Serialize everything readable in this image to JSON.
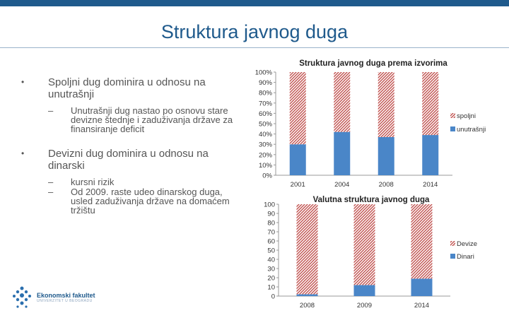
{
  "slide": {
    "title": "Struktura javnog duga",
    "accent_color": "#1f5a8c"
  },
  "bullets": [
    {
      "text": "Spoljni dug dominira u odnosu na unutrašnji",
      "subs": [
        "Unutrašnji dug nastao po osnovu stare devizne štednje i zaduživanja države za finansiranje deficit"
      ]
    },
    {
      "text": "Devizni dug dominira u odnosu na dinarski",
      "subs": [
        "kursni rizik",
        "Od 2009. raste udeo dinarskog duga, usled zaduživanja države na domaćem tržištu"
      ]
    }
  ],
  "logo": {
    "name": "Ekonomski fakultet",
    "sub": "UNIVERZITET U BEOGRADU",
    "icon": "university-logo-icon"
  },
  "chart_data": [
    {
      "type": "bar",
      "stacked": true,
      "title": "Struktura javnog duga prema izvorima",
      "categories": [
        "2001",
        "2004",
        "2008",
        "2014"
      ],
      "series": [
        {
          "name": "unutrašnji",
          "values": [
            30,
            42,
            37,
            39
          ],
          "color": "#4a86c8",
          "pattern": "solid"
        },
        {
          "name": "spoljni",
          "values": [
            70,
            58,
            63,
            61
          ],
          "color": "#c0504d",
          "pattern": "hatched"
        }
      ],
      "legend_order": [
        "spoljni",
        "unutrašnji"
      ],
      "y_ticks": [
        "0%",
        "10%",
        "20%",
        "30%",
        "40%",
        "50%",
        "60%",
        "70%",
        "80%",
        "90%",
        "100%"
      ],
      "ylim": [
        0,
        100
      ],
      "legend": "right"
    },
    {
      "type": "bar",
      "stacked": true,
      "title": "Valutna struktura javnog duga",
      "categories": [
        "2008",
        "2009",
        "2014"
      ],
      "series": [
        {
          "name": "Dinari",
          "values": [
            2,
            12,
            19
          ],
          "color": "#4a86c8",
          "pattern": "solid"
        },
        {
          "name": "Devize",
          "values": [
            98,
            88,
            81
          ],
          "color": "#c0504d",
          "pattern": "hatched"
        }
      ],
      "legend_order": [
        "Devize",
        "Dinari"
      ],
      "y_ticks": [
        "0",
        "10",
        "20",
        "30",
        "40",
        "50",
        "60",
        "70",
        "80",
        "90",
        "100"
      ],
      "ylim": [
        0,
        100
      ],
      "legend": "right"
    }
  ]
}
